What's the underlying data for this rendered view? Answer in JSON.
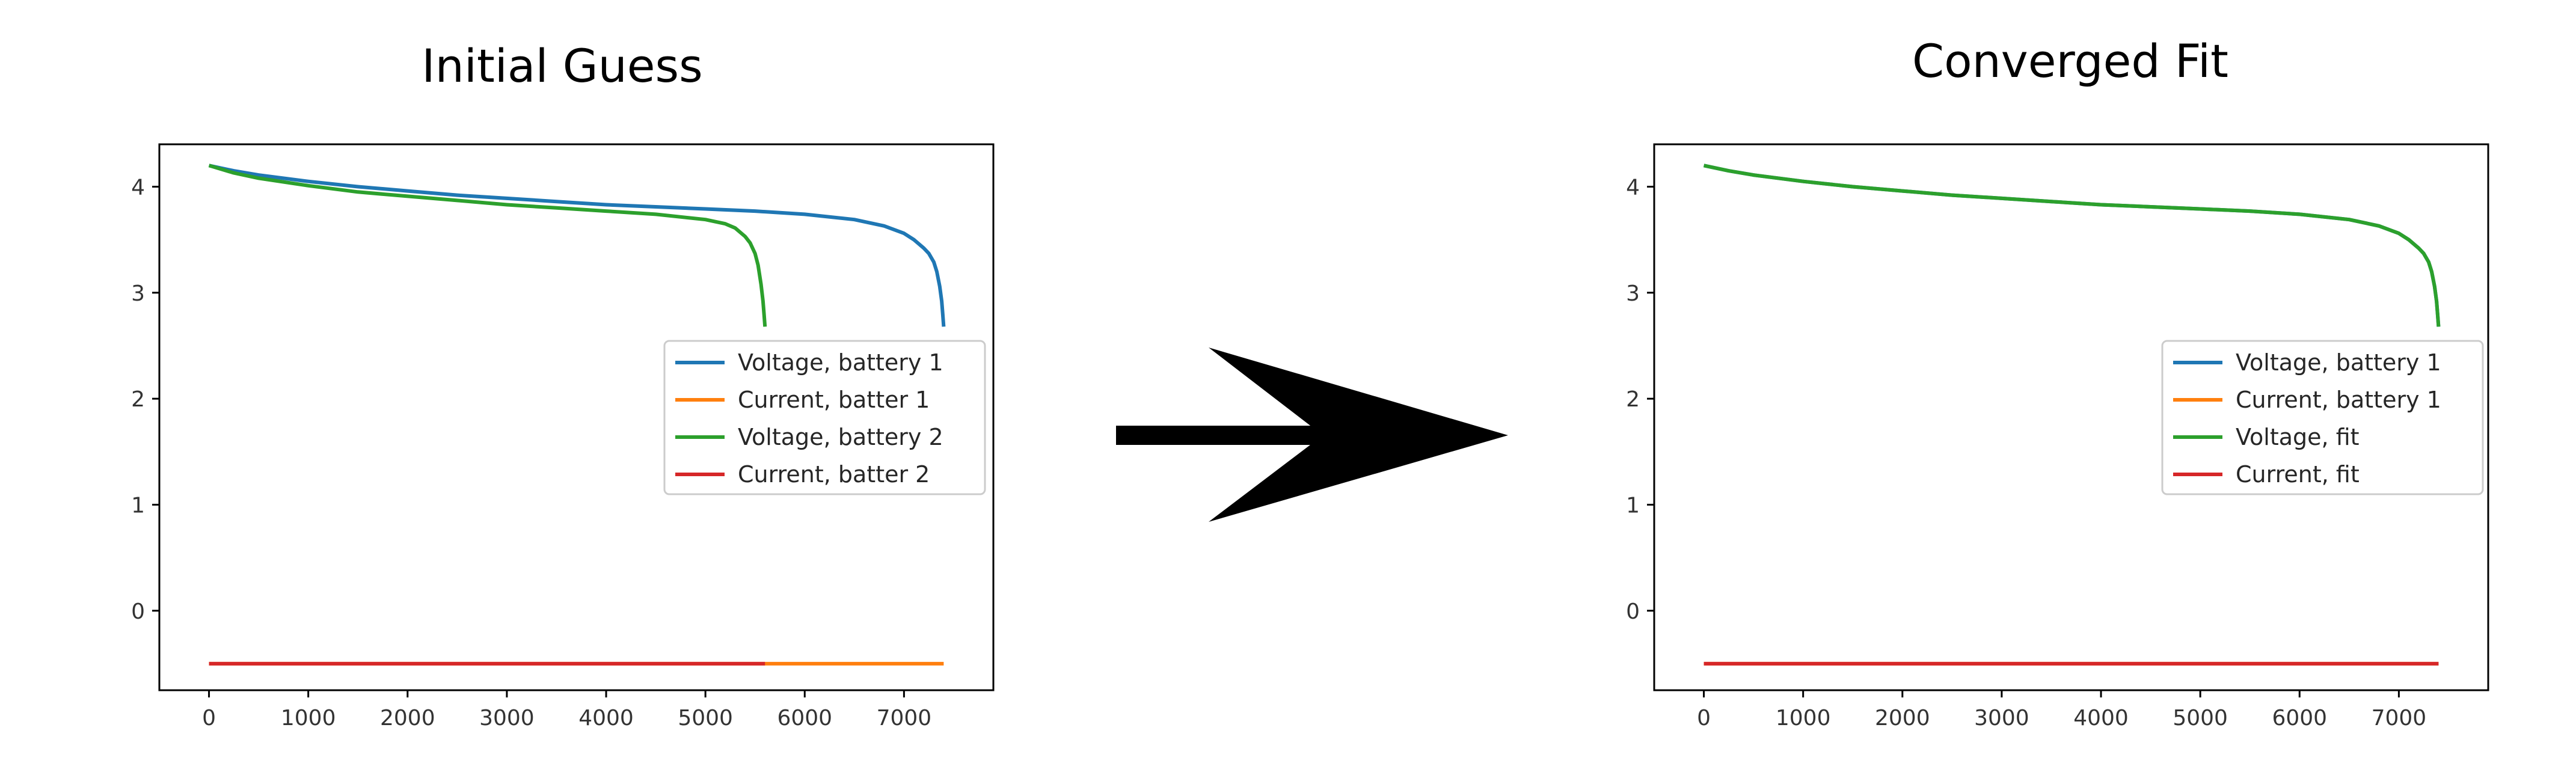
{
  "chart_data": [
    {
      "type": "line",
      "title": "Initial Guess",
      "xlabel": "",
      "ylabel": "",
      "xlim": [
        -500,
        7900
      ],
      "ylim": [
        -0.75,
        4.4
      ],
      "xticks": [
        0,
        1000,
        2000,
        3000,
        4000,
        5000,
        6000,
        7000
      ],
      "yticks": [
        0,
        1,
        2,
        3,
        4
      ],
      "grid": false,
      "legend_position": "center-right",
      "series": [
        {
          "name": "Voltage, battery 1",
          "color": "#1f77b4",
          "x": [
            0,
            250,
            500,
            1000,
            1500,
            2000,
            2500,
            3000,
            3500,
            4000,
            4500,
            5000,
            5500,
            6000,
            6500,
            6800,
            7000,
            7100,
            7200,
            7250,
            7300,
            7330,
            7360,
            7380,
            7390,
            7400
          ],
          "y": [
            4.2,
            4.15,
            4.11,
            4.05,
            4.0,
            3.96,
            3.92,
            3.89,
            3.86,
            3.83,
            3.81,
            3.79,
            3.77,
            3.74,
            3.69,
            3.63,
            3.56,
            3.5,
            3.42,
            3.37,
            3.29,
            3.2,
            3.06,
            2.92,
            2.8,
            2.68
          ]
        },
        {
          "name": "Current, batter 1",
          "color": "#ff7f0e",
          "x": [
            0,
            7400
          ],
          "y": [
            -0.5,
            -0.5
          ]
        },
        {
          "name": "Voltage, battery 2",
          "color": "#2ca02c",
          "x": [
            0,
            250,
            500,
            1000,
            1500,
            2000,
            2500,
            3000,
            3500,
            4000,
            4500,
            4800,
            5000,
            5100,
            5200,
            5300,
            5400,
            5450,
            5500,
            5530,
            5560,
            5580,
            5590,
            5600
          ],
          "y": [
            4.2,
            4.13,
            4.08,
            4.01,
            3.95,
            3.91,
            3.87,
            3.83,
            3.8,
            3.77,
            3.74,
            3.71,
            3.69,
            3.67,
            3.65,
            3.61,
            3.53,
            3.47,
            3.37,
            3.26,
            3.08,
            2.92,
            2.8,
            2.68
          ]
        },
        {
          "name": "Current, batter 2",
          "color": "#d62728",
          "x": [
            0,
            5600
          ],
          "y": [
            -0.5,
            -0.5
          ]
        }
      ]
    },
    {
      "type": "line",
      "title": "Converged Fit",
      "xlabel": "",
      "ylabel": "",
      "xlim": [
        -500,
        7900
      ],
      "ylim": [
        -0.75,
        4.4
      ],
      "xticks": [
        0,
        1000,
        2000,
        3000,
        4000,
        5000,
        6000,
        7000
      ],
      "yticks": [
        0,
        1,
        2,
        3,
        4
      ],
      "grid": false,
      "legend_position": "center-right",
      "series": [
        {
          "name": "Voltage, battery 1",
          "color": "#1f77b4",
          "x": [
            0,
            250,
            500,
            1000,
            1500,
            2000,
            2500,
            3000,
            3500,
            4000,
            4500,
            5000,
            5500,
            6000,
            6500,
            6800,
            7000,
            7100,
            7200,
            7250,
            7300,
            7330,
            7360,
            7380,
            7390,
            7400
          ],
          "y": [
            4.2,
            4.15,
            4.11,
            4.05,
            4.0,
            3.96,
            3.92,
            3.89,
            3.86,
            3.83,
            3.81,
            3.79,
            3.77,
            3.74,
            3.69,
            3.63,
            3.56,
            3.5,
            3.42,
            3.37,
            3.29,
            3.2,
            3.06,
            2.92,
            2.8,
            2.68
          ]
        },
        {
          "name": "Current, battery 1",
          "color": "#ff7f0e",
          "x": [
            0,
            7400
          ],
          "y": [
            -0.5,
            -0.5
          ]
        },
        {
          "name": "Voltage, fit",
          "color": "#2ca02c",
          "x": [
            0,
            250,
            500,
            1000,
            1500,
            2000,
            2500,
            3000,
            3500,
            4000,
            4500,
            5000,
            5500,
            6000,
            6500,
            6800,
            7000,
            7100,
            7200,
            7250,
            7300,
            7330,
            7360,
            7380,
            7390,
            7400
          ],
          "y": [
            4.2,
            4.15,
            4.11,
            4.05,
            4.0,
            3.96,
            3.92,
            3.89,
            3.86,
            3.83,
            3.81,
            3.79,
            3.77,
            3.74,
            3.69,
            3.63,
            3.56,
            3.5,
            3.42,
            3.37,
            3.29,
            3.2,
            3.06,
            2.92,
            2.8,
            2.68
          ]
        },
        {
          "name": "Current, fit",
          "color": "#d62728",
          "x": [
            0,
            7400
          ],
          "y": [
            -0.5,
            -0.5
          ]
        }
      ]
    }
  ],
  "arrow": {
    "icon": "right-arrow-icon",
    "color": "#000000"
  }
}
